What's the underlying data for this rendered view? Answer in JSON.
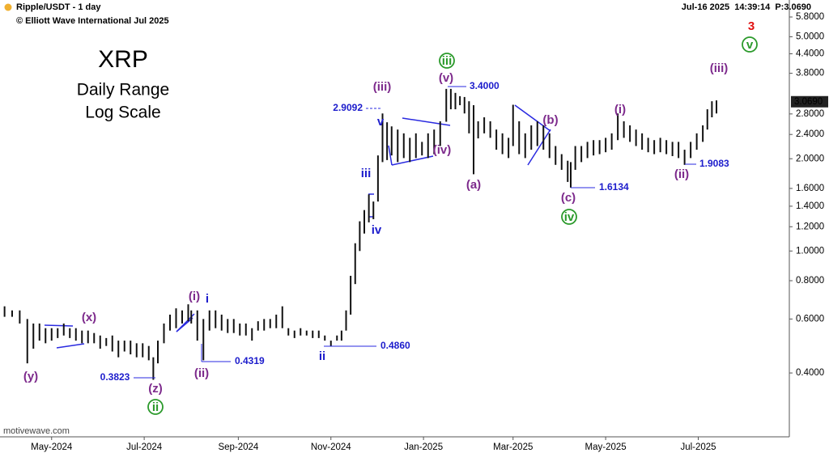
{
  "chart_data": {
    "type": "range_bar",
    "header": {
      "symbol": "Ripple/USDT - 1 day",
      "copyright": "© Elliott Wave International Jul 2025",
      "status": "Jul-16 2025  14:39:14  P:3.0690"
    },
    "title": "XRP",
    "subtitle": "Daily Range",
    "scale_note": "Log Scale",
    "footer": "motivewave.com",
    "log_scale": true,
    "color": "#111111",
    "x": [
      3,
      8,
      13,
      18,
      22,
      26,
      30,
      34,
      38,
      42,
      46,
      50,
      54,
      58,
      62,
      66,
      70,
      74,
      78,
      82,
      86,
      90,
      94,
      98,
      101,
      104,
      108,
      112,
      116,
      120,
      124,
      126,
      130,
      134,
      138,
      142,
      146,
      150,
      154,
      158,
      162,
      166,
      170,
      174,
      178,
      182,
      186,
      190,
      194,
      198,
      202,
      206,
      210,
      214,
      218,
      222,
      225,
      228,
      231,
      234,
      237,
      240,
      243,
      246,
      249,
      252,
      255,
      258,
      262,
      266,
      270,
      274,
      278,
      282,
      286,
      290,
      294,
      297,
      300,
      303,
      306,
      309,
      312,
      315,
      319,
      323,
      327,
      331,
      335,
      338,
      342,
      346,
      350,
      354,
      358,
      362,
      366,
      370,
      374,
      376,
      379,
      383,
      387,
      391,
      395,
      399,
      403,
      407,
      411,
      415,
      419,
      423,
      427,
      431,
      435,
      439,
      443,
      447,
      451,
      455,
      459,
      463,
      466,
      469,
      472
    ],
    "lows": [
      0.61,
      0.61,
      0.58,
      0.43,
      0.48,
      0.51,
      0.5,
      0.51,
      0.52,
      0.53,
      0.52,
      0.51,
      0.5,
      0.5,
      0.5,
      0.48,
      0.49,
      0.47,
      0.45,
      0.47,
      0.46,
      0.45,
      0.45,
      0.44,
      0.38,
      0.43,
      0.5,
      0.55,
      0.56,
      0.58,
      0.59,
      0.58,
      0.51,
      0.44,
      0.55,
      0.56,
      0.55,
      0.54,
      0.54,
      0.53,
      0.53,
      0.51,
      0.55,
      0.55,
      0.56,
      0.56,
      0.56,
      0.53,
      0.52,
      0.53,
      0.53,
      0.52,
      0.52,
      0.51,
      0.49,
      0.51,
      0.51,
      0.55,
      0.62,
      0.78,
      1.0,
      1.14,
      1.24,
      1.27,
      1.45,
      1.95,
      1.98,
      2.05,
      1.95,
      2.01,
      1.95,
      2.01,
      2.05,
      2.01,
      2.07,
      2.2,
      2.64,
      2.9,
      2.9,
      2.99,
      2.81,
      2.42,
      1.78,
      2.33,
      2.42,
      2.34,
      2.14,
      2.07,
      2.01,
      2.2,
      2.07,
      2.01,
      2.14,
      2.2,
      2.14,
      2.01,
      1.91,
      1.84,
      1.68,
      1.61,
      1.84,
      1.95,
      2.01,
      2.05,
      2.07,
      2.1,
      2.14,
      2.3,
      2.34,
      2.27,
      2.2,
      2.14,
      2.1,
      2.07,
      2.1,
      2.07,
      2.04,
      2.01,
      1.91,
      2.01,
      2.14,
      2.27,
      2.49,
      2.73,
      2.81
    ],
    "highs": [
      0.66,
      0.64,
      0.64,
      0.6,
      0.58,
      0.58,
      0.56,
      0.56,
      0.56,
      0.58,
      0.56,
      0.56,
      0.55,
      0.55,
      0.54,
      0.53,
      0.52,
      0.53,
      0.51,
      0.51,
      0.51,
      0.5,
      0.5,
      0.49,
      0.45,
      0.51,
      0.58,
      0.62,
      0.65,
      0.64,
      0.67,
      0.64,
      0.64,
      0.6,
      0.64,
      0.64,
      0.62,
      0.6,
      0.6,
      0.58,
      0.58,
      0.56,
      0.59,
      0.6,
      0.6,
      0.62,
      0.66,
      0.56,
      0.55,
      0.56,
      0.55,
      0.55,
      0.55,
      0.53,
      0.51,
      0.53,
      0.55,
      0.64,
      0.83,
      1.06,
      1.25,
      1.36,
      1.53,
      1.45,
      2.05,
      2.81,
      2.63,
      2.55,
      2.49,
      2.42,
      2.34,
      2.42,
      2.27,
      2.42,
      2.49,
      2.65,
      3.38,
      3.38,
      3.28,
      3.2,
      3.18,
      3.08,
      2.99,
      2.65,
      2.73,
      2.65,
      2.49,
      2.42,
      2.34,
      3.0,
      2.65,
      2.42,
      2.57,
      2.65,
      2.57,
      2.42,
      2.2,
      2.07,
      1.97,
      1.95,
      2.2,
      2.2,
      2.27,
      2.3,
      2.3,
      2.34,
      2.42,
      2.81,
      2.65,
      2.57,
      2.49,
      2.42,
      2.34,
      2.3,
      2.34,
      2.3,
      2.27,
      2.27,
      2.14,
      2.27,
      2.42,
      2.57,
      2.9,
      3.08,
      3.1
    ],
    "last_price": {
      "value": 3.069,
      "label": "3.0690"
    },
    "xlim": [
      0,
      520
    ],
    "xticks": [
      {
        "value": 34,
        "label": "May-2024"
      },
      {
        "value": 95,
        "label": "Jul-2024"
      },
      {
        "value": 157,
        "label": "Sep-2024"
      },
      {
        "value": 218,
        "label": "Nov-2024"
      },
      {
        "value": 279,
        "label": "Jan-2025"
      },
      {
        "value": 338,
        "label": "Mar-2025"
      },
      {
        "value": 399,
        "label": "May-2025"
      },
      {
        "value": 460,
        "label": "Jul-2025"
      }
    ],
    "ylim": [
      0.2476,
      6.59
    ],
    "yticks": [
      {
        "value": 0.4,
        "label": "0.4000"
      },
      {
        "value": 0.6,
        "label": "0.6000"
      },
      {
        "value": 0.8,
        "label": "0.8000"
      },
      {
        "value": 1.0,
        "label": "1.0000"
      },
      {
        "value": 1.2,
        "label": "1.2000"
      },
      {
        "value": 1.4,
        "label": "1.4000"
      },
      {
        "value": 1.6,
        "label": "1.6000"
      },
      {
        "value": 2.0,
        "label": "2.0000"
      },
      {
        "value": 2.4,
        "label": "2.4000"
      },
      {
        "value": 2.8,
        "label": "2.8000"
      },
      {
        "value": 3.8,
        "label": "3.8000"
      },
      {
        "value": 4.4,
        "label": "4.4000"
      },
      {
        "value": 5.0,
        "label": "5.0000"
      },
      {
        "value": 5.8,
        "label": "5.8000"
      }
    ],
    "wave_labels": [
      "(y)",
      "(x)",
      "(z)",
      "ii",
      "(i)",
      "i",
      "(ii)",
      "ii",
      "iii",
      "iv",
      "v",
      "(iii)",
      "(iv)",
      "(v)",
      "iii",
      "(a)",
      "(b)",
      "(c)",
      "iv",
      "(i)",
      "(ii)",
      "(iii)",
      "v",
      "3"
    ],
    "price_labels": [
      "0.3823",
      "0.4319",
      "0.4860",
      "2.9092",
      "3.4000",
      "1.6134",
      "1.9083"
    ]
  }
}
